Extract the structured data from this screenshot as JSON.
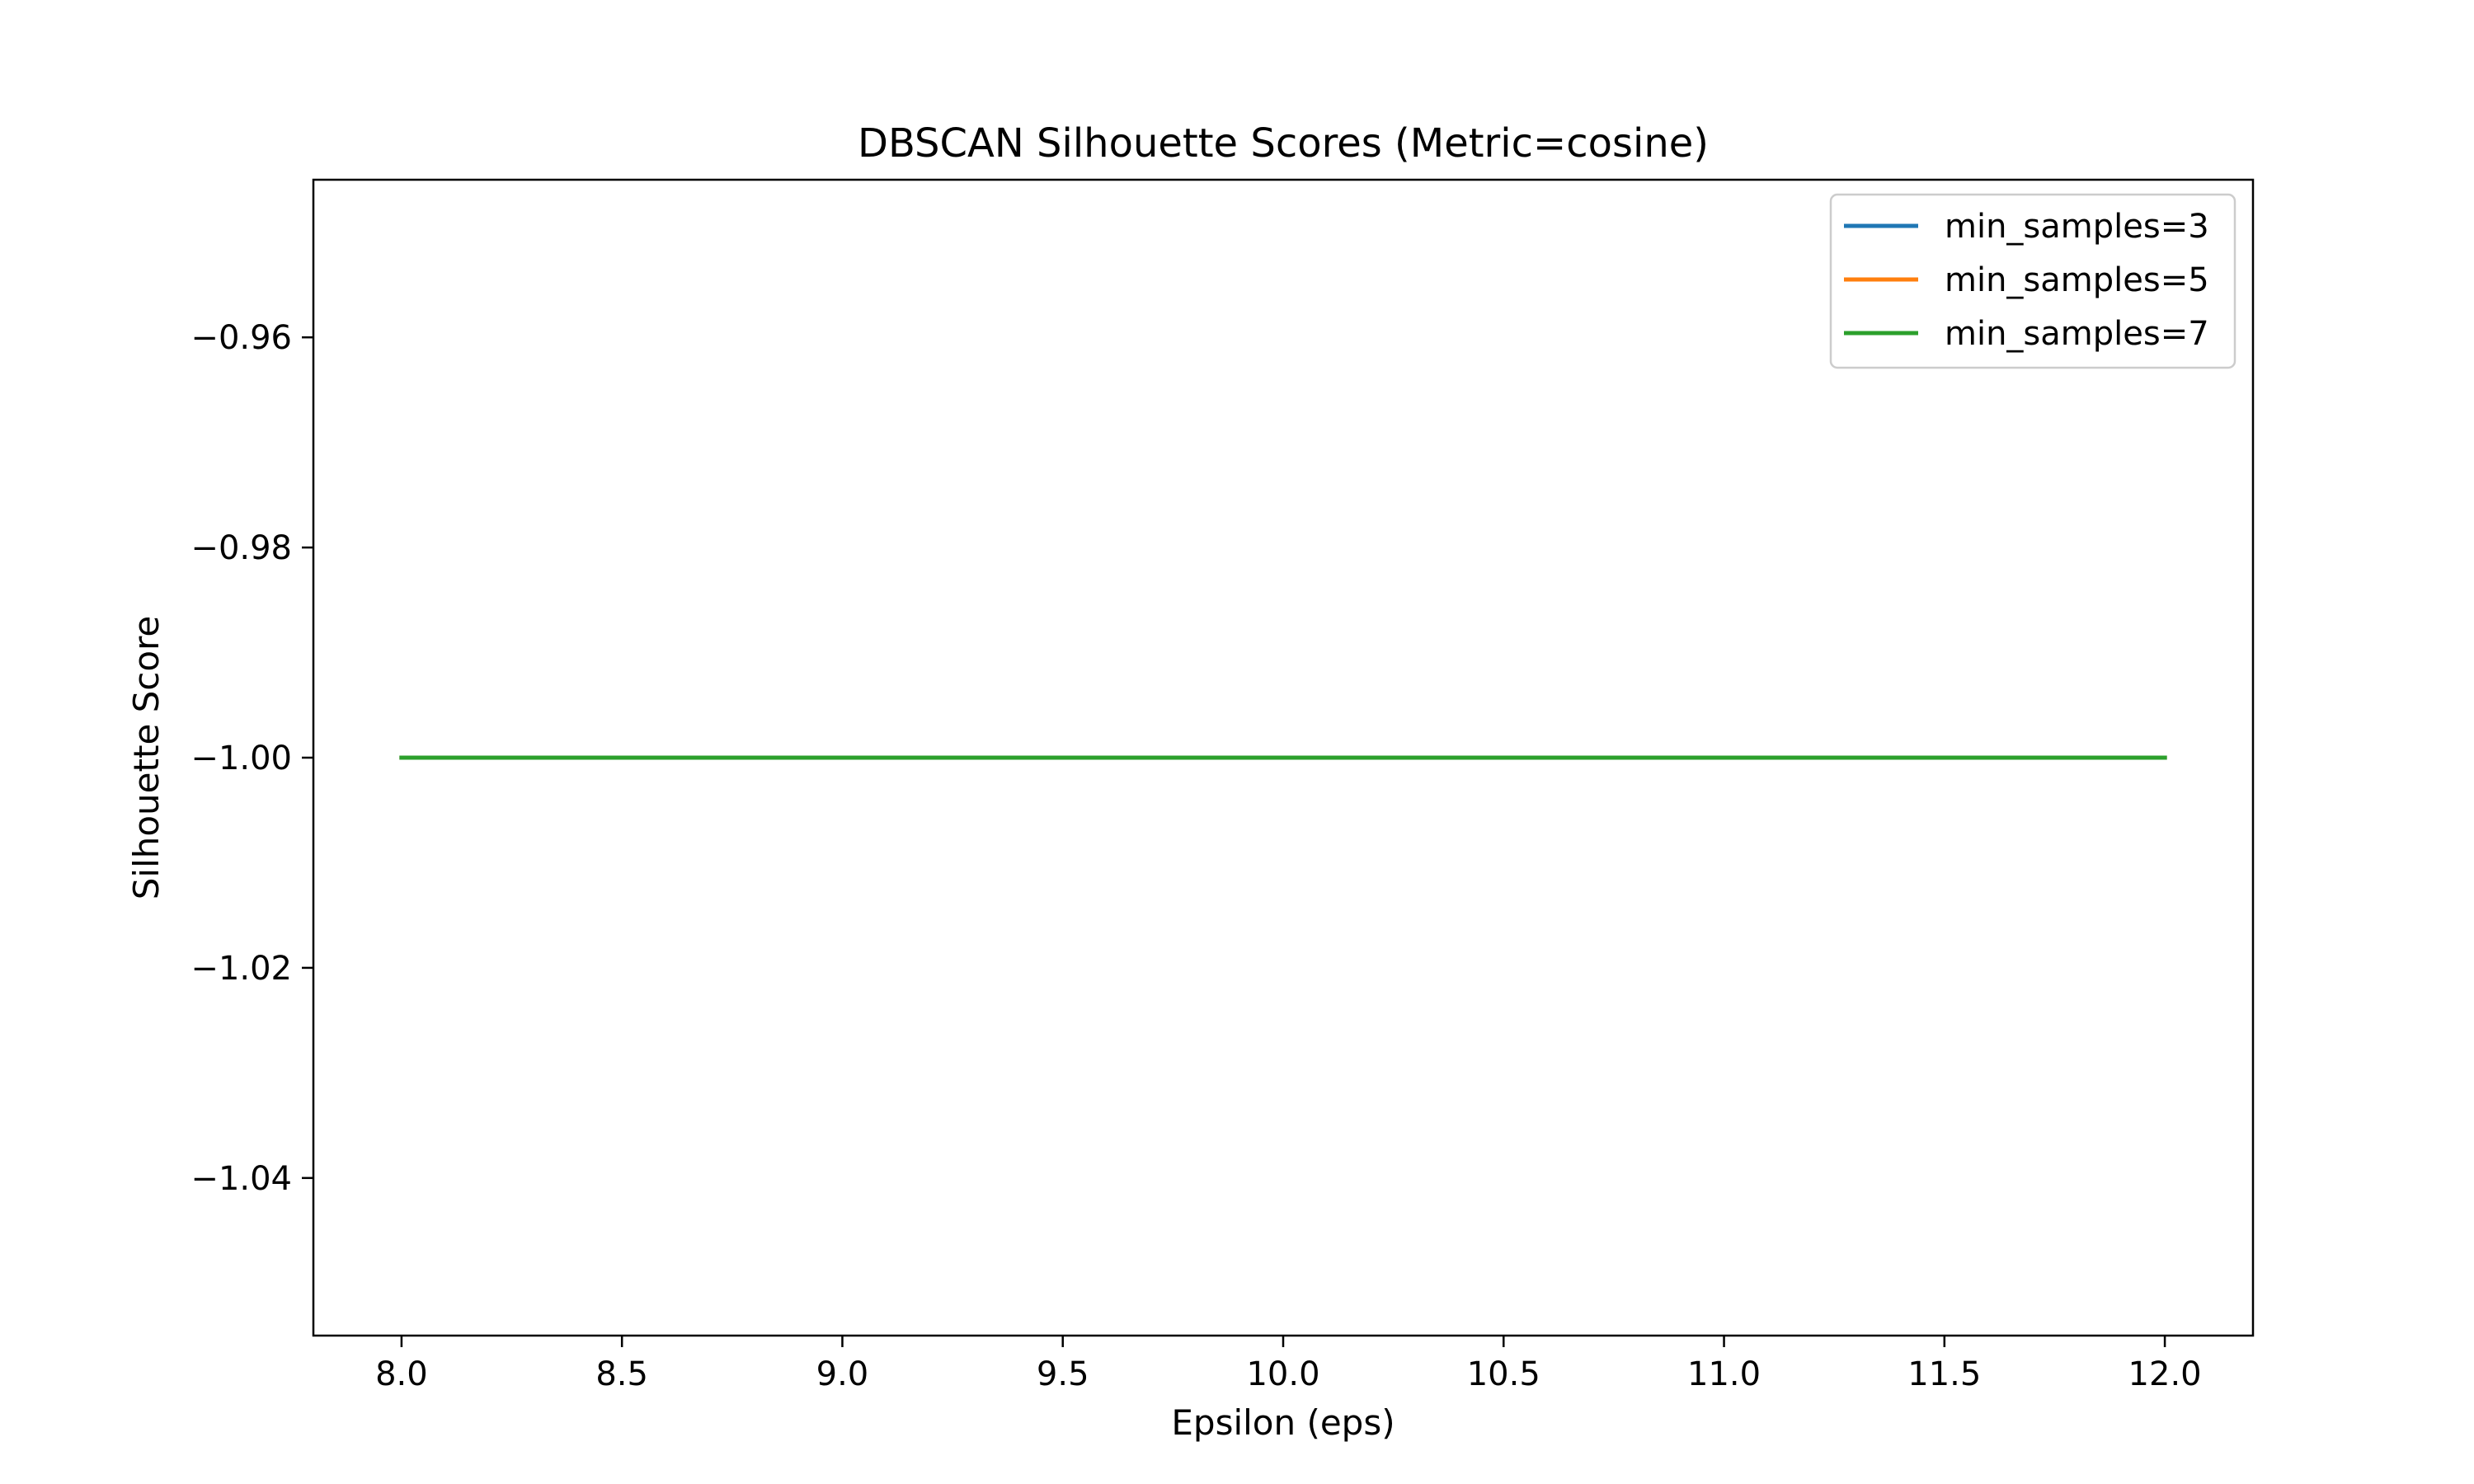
{
  "chart_data": {
    "type": "line",
    "title": "DBSCAN Silhouette Scores (Metric=cosine)",
    "xlabel": "Epsilon (eps)",
    "ylabel": "Silhouette Score",
    "xlim": [
      7.8,
      12.2
    ],
    "ylim": [
      -1.055,
      -0.945
    ],
    "xticks": [
      8.0,
      8.5,
      9.0,
      9.5,
      10.0,
      10.5,
      11.0,
      11.5,
      12.0
    ],
    "xtick_labels": [
      "8.0",
      "8.5",
      "9.0",
      "9.5",
      "10.0",
      "10.5",
      "11.0",
      "11.5",
      "12.0"
    ],
    "yticks": [
      -0.96,
      -0.98,
      -1.0,
      -1.02,
      -1.04
    ],
    "ytick_labels": [
      "−0.96",
      "−0.98",
      "−1.00",
      "−1.02",
      "−1.04"
    ],
    "grid": false,
    "legend_position": "top-right",
    "x": [
      8.0,
      9.0,
      10.0,
      11.0,
      12.0
    ],
    "series": [
      {
        "name": "min_samples=3",
        "color": "#1f77b4",
        "values": [
          -1.0,
          -1.0,
          -1.0,
          -1.0,
          -1.0
        ]
      },
      {
        "name": "min_samples=5",
        "color": "#ff7f0e",
        "values": [
          -1.0,
          -1.0,
          -1.0,
          -1.0,
          -1.0
        ]
      },
      {
        "name": "min_samples=7",
        "color": "#2ca02c",
        "values": [
          -1.0,
          -1.0,
          -1.0,
          -1.0,
          -1.0
        ]
      }
    ]
  }
}
